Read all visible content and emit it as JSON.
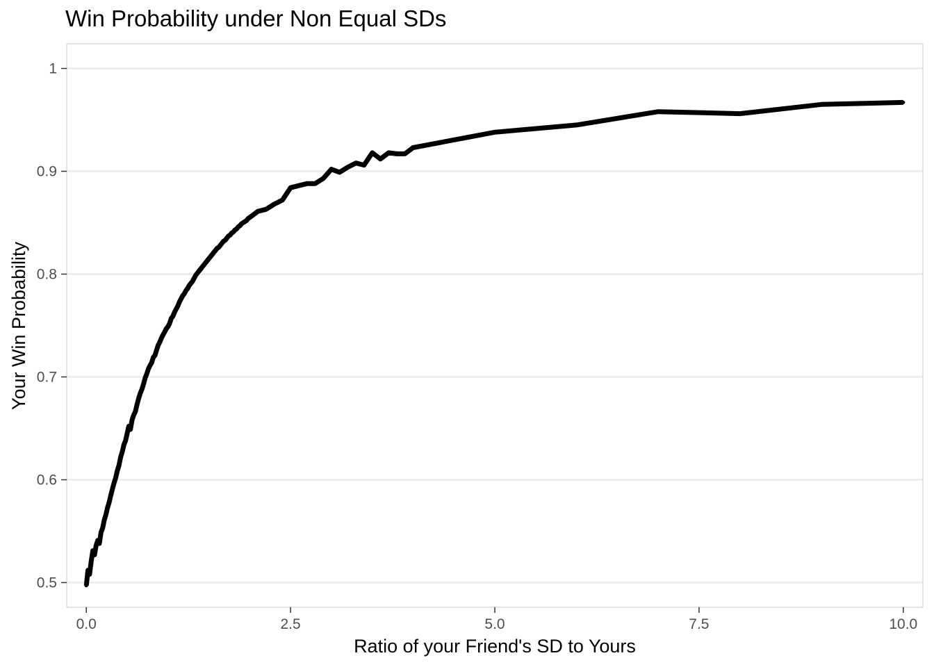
{
  "chart_data": {
    "type": "line",
    "title": "Win Probability under Non Equal SDs",
    "xlabel": "Ratio of your Friend's SD to Yours",
    "ylabel": "Your Win Probability",
    "xlim": [
      -0.24,
      10.24
    ],
    "ylim": [
      0.476,
      1.024
    ],
    "x_ticks": [
      "0.0",
      "2.5",
      "5.0",
      "7.5",
      "10.0"
    ],
    "y_ticks": [
      "0.5",
      "0.6",
      "0.7",
      "0.8",
      "0.9",
      "1"
    ],
    "grid": "horizontal-major",
    "legend": "none",
    "series": [
      {
        "color": "#000000",
        "x": [
          0.0,
          0.02,
          0.04,
          0.06,
          0.08,
          0.1,
          0.12,
          0.14,
          0.16,
          0.18,
          0.2,
          0.22,
          0.24,
          0.26,
          0.28,
          0.3,
          0.32,
          0.34,
          0.36,
          0.38,
          0.4,
          0.42,
          0.44,
          0.46,
          0.48,
          0.5,
          0.52,
          0.54,
          0.56,
          0.58,
          0.6,
          0.62,
          0.64,
          0.66,
          0.68,
          0.7,
          0.72,
          0.74,
          0.76,
          0.78,
          0.8,
          0.82,
          0.84,
          0.86,
          0.88,
          0.9,
          0.92,
          0.94,
          0.96,
          0.98,
          1.0,
          1.02,
          1.04,
          1.06,
          1.08,
          1.1,
          1.12,
          1.14,
          1.16,
          1.18,
          1.2,
          1.22,
          1.24,
          1.26,
          1.28,
          1.3,
          1.32,
          1.34,
          1.36,
          1.38,
          1.4,
          1.42,
          1.44,
          1.46,
          1.48,
          1.5,
          1.52,
          1.54,
          1.56,
          1.58,
          1.6,
          1.62,
          1.64,
          1.66,
          1.68,
          1.7,
          1.72,
          1.74,
          1.76,
          1.78,
          1.8,
          1.82,
          1.84,
          1.86,
          1.88,
          1.9,
          1.92,
          1.94,
          1.96,
          1.98,
          2.0,
          2.1,
          2.2,
          2.3,
          2.4,
          2.5,
          2.6,
          2.7,
          2.8,
          2.9,
          3.0,
          3.1,
          3.2,
          3.3,
          3.4,
          3.5,
          3.6,
          3.7,
          3.8,
          3.9,
          4.0,
          5.0,
          6.0,
          7.0,
          8.0,
          9.0,
          10.0
        ],
        "values": [
          0.497,
          0.512,
          0.508,
          0.521,
          0.531,
          0.527,
          0.536,
          0.541,
          0.538,
          0.549,
          0.553,
          0.561,
          0.566,
          0.573,
          0.578,
          0.585,
          0.591,
          0.597,
          0.602,
          0.609,
          0.614,
          0.622,
          0.627,
          0.634,
          0.638,
          0.645,
          0.652,
          0.649,
          0.658,
          0.663,
          0.666,
          0.673,
          0.679,
          0.684,
          0.688,
          0.693,
          0.699,
          0.703,
          0.708,
          0.711,
          0.714,
          0.719,
          0.721,
          0.726,
          0.731,
          0.734,
          0.738,
          0.741,
          0.744,
          0.747,
          0.749,
          0.752,
          0.757,
          0.759,
          0.763,
          0.766,
          0.769,
          0.773,
          0.776,
          0.779,
          0.781,
          0.784,
          0.786,
          0.789,
          0.791,
          0.793,
          0.796,
          0.799,
          0.801,
          0.803,
          0.805,
          0.807,
          0.809,
          0.811,
          0.813,
          0.815,
          0.817,
          0.819,
          0.821,
          0.823,
          0.825,
          0.826,
          0.828,
          0.83,
          0.832,
          0.833,
          0.835,
          0.837,
          0.838,
          0.84,
          0.841,
          0.843,
          0.844,
          0.846,
          0.847,
          0.849,
          0.85,
          0.851,
          0.852,
          0.854,
          0.855,
          0.861,
          0.863,
          0.868,
          0.872,
          0.884,
          0.886,
          0.888,
          0.888,
          0.893,
          0.902,
          0.899,
          0.904,
          0.908,
          0.906,
          0.918,
          0.912,
          0.918,
          0.917,
          0.917,
          0.923,
          0.938,
          0.945,
          0.958,
          0.956,
          0.965,
          0.967
        ]
      }
    ]
  }
}
